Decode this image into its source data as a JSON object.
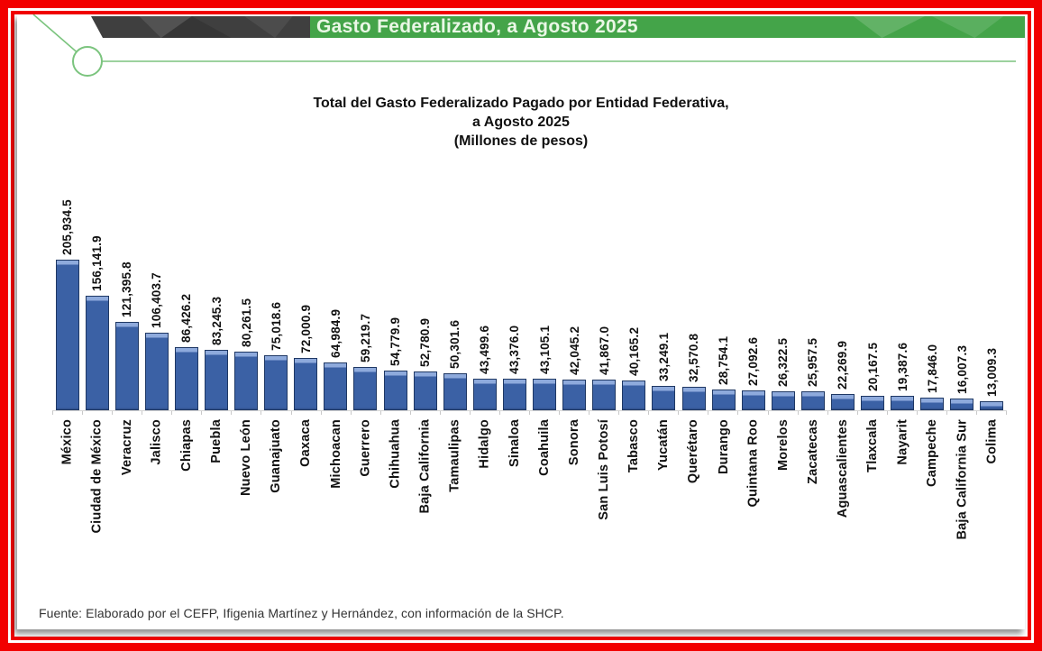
{
  "banner": {
    "title": "Gasto Federalizado, a Agosto 2025"
  },
  "chart_data": {
    "type": "bar",
    "title": "Total del Gasto Federalizado Pagado por Entidad Federativa,",
    "title_line2": "a Agosto 2025",
    "title_line3": "(Millones de pesos)",
    "ylabel": "",
    "xlabel": "",
    "ylim": [
      0,
      210000
    ],
    "grid": false,
    "legend": false,
    "categories": [
      "México",
      "Ciudad de México",
      "Veracruz",
      "Jalisco",
      "Chiapas",
      "Puebla",
      "Nuevo León",
      "Guanajuato",
      "Oaxaca",
      "Michoacan",
      "Guerrero",
      "Chihuahua",
      "Baja California",
      "Tamaulipas",
      "Hidalgo",
      "Sinaloa",
      "Coahuila",
      "Sonora",
      "San Luis Potosí",
      "Tabasco",
      "Yucatán",
      "Querétaro",
      "Durango",
      "Quintana Roo",
      "Morelos",
      "Zacatecas",
      "Aguascalientes",
      "Tlaxcala",
      "Nayarit",
      "Campeche",
      "Baja California Sur",
      "Colima"
    ],
    "values": [
      205934.5,
      156141.9,
      121395.8,
      106403.7,
      86426.2,
      83245.3,
      80261.5,
      75018.6,
      72000.9,
      64984.9,
      59219.7,
      54779.9,
      52780.9,
      50301.6,
      43499.6,
      43376.0,
      43105.1,
      42045.2,
      41867.0,
      40165.2,
      33249.1,
      32570.8,
      28754.1,
      27092.6,
      26322.5,
      25957.5,
      22269.9,
      20167.5,
      19387.6,
      17846.0,
      16007.3,
      13009.3
    ],
    "value_labels": [
      "205,934.5",
      "156,141.9",
      "121,395.8",
      "106,403.7",
      "86,426.2",
      "83,245.3",
      "80,261.5",
      "75,018.6",
      "72,000.9",
      "64,984.9",
      "59,219.7",
      "54,779.9",
      "52,780.9",
      "50,301.6",
      "43,499.6",
      "43,376.0",
      "43,105.1",
      "42,045.2",
      "41,867.0",
      "40,165.2",
      "33,249.1",
      "32,570.8",
      "28,754.1",
      "27,092.6",
      "26,322.5",
      "25,957.5",
      "22,269.9",
      "20,167.5",
      "19,387.6",
      "17,846.0",
      "16,007.3",
      "13,009.3"
    ]
  },
  "footer": {
    "source": "Fuente: Elaborado por el CEFP, Ifigenia Martínez y Hernández, con información de la SHCP."
  },
  "colors": {
    "frame_red": "#f20000",
    "banner_green": "#44a449",
    "banner_dark": "#3f3f3f",
    "banner_text": "#eaf7e6",
    "accent_line_green": "#7bc47e",
    "bar_fill": "#3b61a5",
    "bar_border": "#1f3864",
    "bar_highlight": "#8eaadc"
  }
}
